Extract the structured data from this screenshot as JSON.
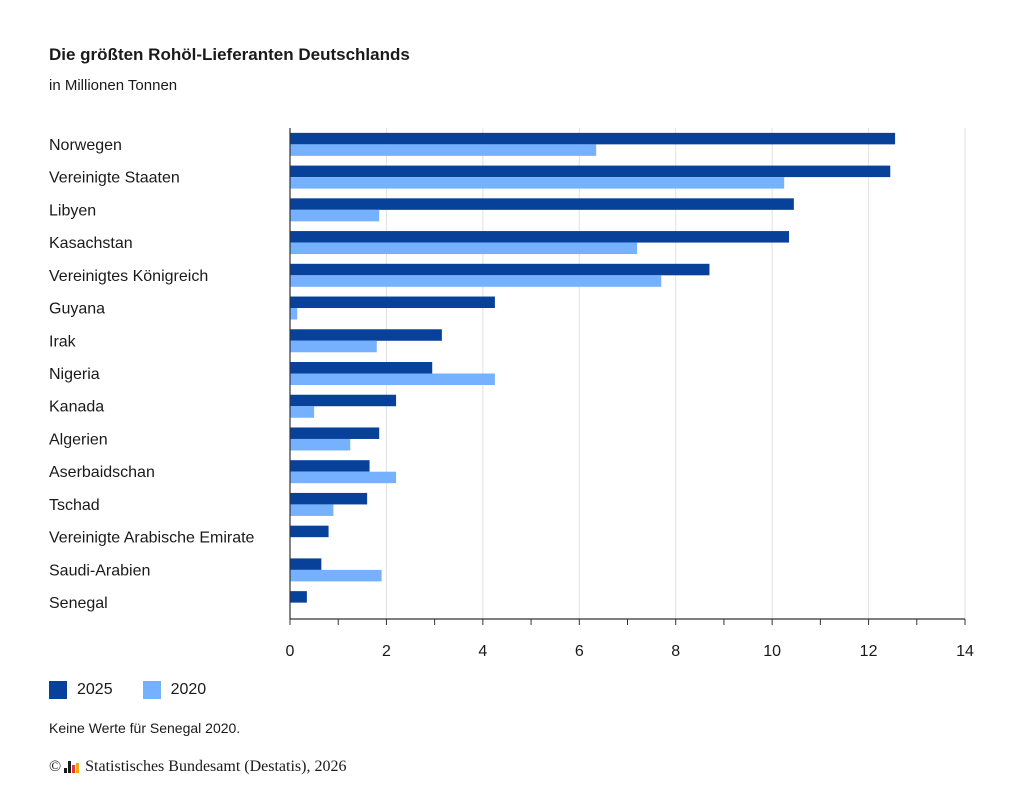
{
  "header": {
    "title": "Die größten Rohöl-Lieferanten Deutschlands",
    "subtitle": "in Millionen Tonnen"
  },
  "chart_data": {
    "type": "bar",
    "orientation": "horizontal",
    "title": "Die größten Rohöl-Lieferanten Deutschlands",
    "subtitle": "in Millionen Tonnen",
    "xlabel": "",
    "ylabel": "",
    "xlim": [
      0,
      14
    ],
    "xticks": [
      0,
      2,
      4,
      6,
      8,
      10,
      12,
      14
    ],
    "grid": true,
    "legend_position": "bottom-left",
    "categories": [
      "Norwegen",
      "Vereinigte Staaten",
      "Libyen",
      "Kasachstan",
      "Vereinigtes Königreich",
      "Guyana",
      "Irak",
      "Nigeria",
      "Kanada",
      "Algerien",
      "Aserbaidschan",
      "Tschad",
      "Vereinigte Arabische Emirate",
      "Saudi-Arabien",
      "Senegal"
    ],
    "series": [
      {
        "name": "2025",
        "color": "#08419a",
        "values": [
          12.55,
          12.45,
          10.45,
          10.35,
          8.7,
          4.25,
          3.15,
          2.95,
          2.2,
          1.85,
          1.65,
          1.6,
          0.8,
          0.65,
          0.35
        ]
      },
      {
        "name": "2020",
        "color": "#75b1ff",
        "values": [
          6.35,
          10.25,
          1.85,
          7.2,
          7.7,
          0.15,
          1.8,
          4.25,
          0.5,
          1.25,
          2.2,
          0.9,
          null,
          1.9,
          null
        ]
      }
    ]
  },
  "note": "Keine Werte für Senegal 2020.",
  "footer": {
    "copyright": "©",
    "source": "Statistisches Bundesamt (Destatis), 2026"
  }
}
